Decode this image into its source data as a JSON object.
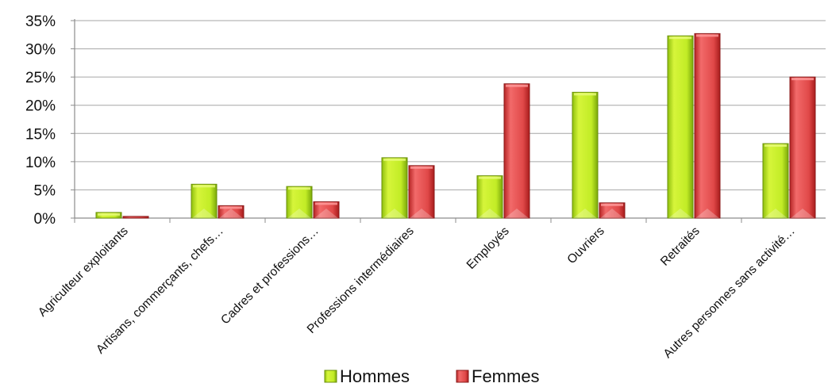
{
  "chart_data": {
    "type": "bar",
    "categories": [
      "Agriculteur exploitants",
      "Artisans, commerçants, chefs…",
      "Cadres et professions…",
      "Professions intermédiaires",
      "Employés",
      "Ouvriers",
      "Retraités",
      "Autres personnes sans activité…"
    ],
    "series": [
      {
        "name": "Hommes",
        "values": [
          1.0,
          6.0,
          5.6,
          10.7,
          7.5,
          22.3,
          32.3,
          13.2
        ],
        "color": "#b5e61d"
      },
      {
        "name": "Femmes",
        "values": [
          0.3,
          2.2,
          2.9,
          9.3,
          23.8,
          2.7,
          32.7,
          25.0
        ],
        "color": "#e84c4c"
      }
    ],
    "y_ticks": [
      "0%",
      "5%",
      "10%",
      "15%",
      "20%",
      "25%",
      "30%",
      "35%"
    ],
    "ylim": [
      0,
      35
    ],
    "y_unit": "%",
    "grid": true,
    "legend_position": "bottom",
    "title": "",
    "xlabel": "",
    "ylabel": ""
  }
}
